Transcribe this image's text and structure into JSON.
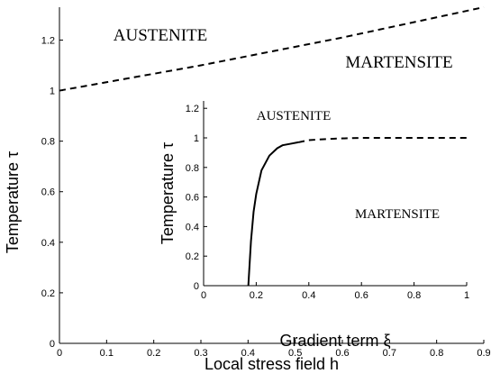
{
  "chart_data": [
    {
      "type": "line",
      "xlabel": "Local stress field h",
      "ylabel": "Temperature τ",
      "xlim": [
        0,
        0.9
      ],
      "ylim": [
        0,
        1.33
      ],
      "xticks": [
        0,
        0.1,
        0.2,
        0.3,
        0.4,
        0.5,
        0.6,
        0.7,
        0.8,
        0.9
      ],
      "yticks": [
        0,
        0.2,
        0.4,
        0.6,
        0.8,
        1,
        1.2
      ],
      "annotations": [
        "AUSTENITE",
        "MARTENSITE"
      ],
      "series": [
        {
          "style": "dashed",
          "color": "#000000",
          "x": [
            0,
            0.3,
            0.6,
            0.9
          ],
          "values": [
            1,
            1.1,
            1.21,
            1.33
          ]
        }
      ]
    },
    {
      "type": "line",
      "xlabel": "Gradient term ξ",
      "ylabel": "Temperature τ",
      "xlim": [
        0,
        1
      ],
      "ylim": [
        0,
        1.25
      ],
      "xticks": [
        0,
        0.2,
        0.4,
        0.6,
        0.8,
        1
      ],
      "yticks": [
        0,
        0.2,
        0.4,
        0.6,
        0.8,
        1,
        1.2
      ],
      "annotations": [
        "AUSTENITE",
        "MARTENSITE"
      ],
      "series": [
        {
          "style": "solid",
          "color": "#000000",
          "x": [
            0.17,
            0.18,
            0.19,
            0.2,
            0.22,
            0.25,
            0.28,
            0.3,
            0.33,
            0.36
          ],
          "values": [
            0,
            0.3,
            0.5,
            0.62,
            0.78,
            0.88,
            0.93,
            0.95,
            0.96,
            0.97
          ]
        },
        {
          "style": "dashed",
          "color": "#000000",
          "x": [
            0.36,
            0.4,
            0.5,
            0.6,
            0.8,
            1
          ],
          "values": [
            0.97,
            0.985,
            0.995,
            1,
            1,
            1
          ]
        }
      ]
    }
  ]
}
